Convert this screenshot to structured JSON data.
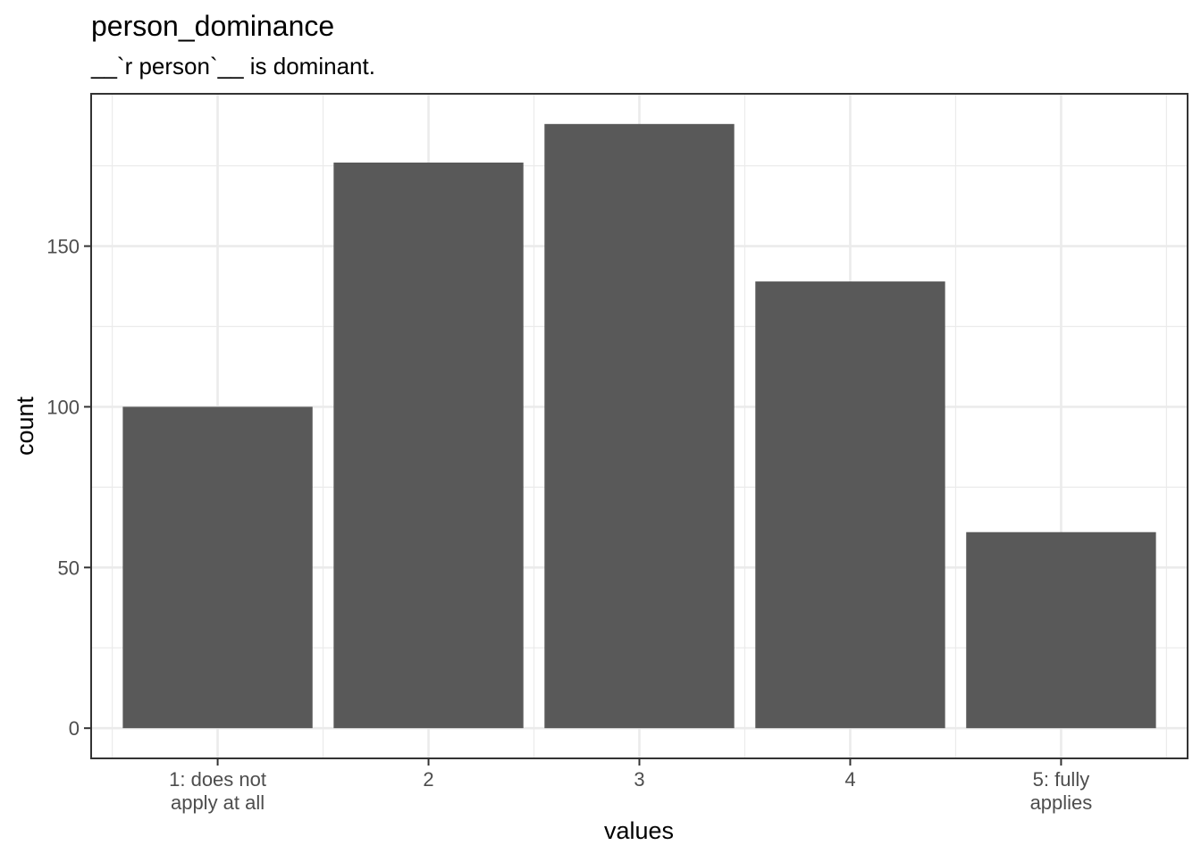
{
  "chart_data": {
    "type": "bar",
    "title": "person_dominance",
    "subtitle": "__`r person`__ is dominant.",
    "xlabel": "values",
    "ylabel": "count",
    "categories": [
      [
        "1: does not",
        "apply at all"
      ],
      [
        "2"
      ],
      [
        "3"
      ],
      [
        "4"
      ],
      [
        "5: fully",
        "applies"
      ]
    ],
    "values": [
      100,
      176,
      188,
      139,
      61
    ],
    "y_ticks": [
      0,
      50,
      100,
      150
    ],
    "ylim": [
      -9.4,
      197.4
    ],
    "grid": true,
    "bar_color": "#595959",
    "panel_border_color": "#333333",
    "grid_color": "#ebebeb"
  }
}
